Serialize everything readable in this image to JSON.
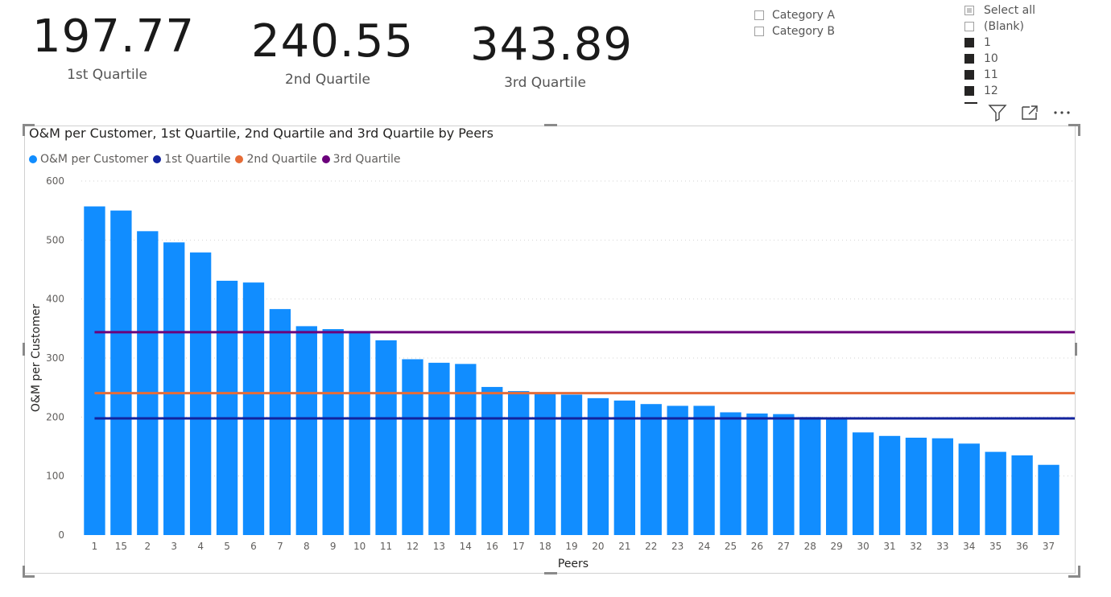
{
  "cards": [
    {
      "value": "197.77",
      "label": "1st Quartile"
    },
    {
      "value": "240.55",
      "label": "2nd Quartile"
    },
    {
      "value": "343.89",
      "label": "3rd Quartile"
    }
  ],
  "category_slicer": {
    "options": [
      {
        "label": "Category A",
        "checked": false
      },
      {
        "label": "Category B",
        "checked": false
      }
    ]
  },
  "peers_slicer": {
    "options": [
      {
        "label": "Select all",
        "state": "partial"
      },
      {
        "label": "(Blank)",
        "state": "unchecked"
      },
      {
        "label": "1",
        "state": "checked"
      },
      {
        "label": "10",
        "state": "checked"
      },
      {
        "label": "11",
        "state": "checked"
      },
      {
        "label": "12",
        "state": "checked"
      }
    ]
  },
  "visual_header": {
    "icons": [
      "filter-icon",
      "focus-mode-icon",
      "more-options-icon"
    ]
  },
  "chart_data": {
    "type": "bar",
    "title": "O&M per Customer, 1st Quartile, 2nd Quartile and 3rd Quartile by Peers",
    "xlabel": "Peers",
    "ylabel": "O&M per Customer",
    "ylim": [
      0,
      600
    ],
    "yticks": [
      0,
      100,
      200,
      300,
      400,
      500,
      600
    ],
    "grid": true,
    "legend_position": "top-left",
    "categories": [
      "1",
      "15",
      "2",
      "3",
      "4",
      "5",
      "6",
      "7",
      "8",
      "9",
      "10",
      "11",
      "12",
      "13",
      "14",
      "16",
      "17",
      "18",
      "19",
      "20",
      "21",
      "22",
      "23",
      "24",
      "25",
      "26",
      "27",
      "28",
      "29",
      "30",
      "31",
      "32",
      "33",
      "34",
      "35",
      "36",
      "37"
    ],
    "series": [
      {
        "name": "O&M per Customer",
        "type": "bar",
        "color": "#118dff",
        "values": [
          557,
          550,
          515,
          496,
          479,
          431,
          428,
          383,
          354,
          349,
          345,
          330,
          298,
          292,
          290,
          251,
          244,
          242,
          238,
          232,
          228,
          222,
          219,
          219,
          208,
          206,
          205,
          200,
          199,
          174,
          168,
          165,
          164,
          155,
          141,
          135,
          119
        ]
      },
      {
        "name": "1st Quartile",
        "type": "line",
        "color": "#12239e",
        "value": 197.77
      },
      {
        "name": "2nd Quartile",
        "type": "line",
        "color": "#e66c37",
        "value": 240.55
      },
      {
        "name": "3rd Quartile",
        "type": "line",
        "color": "#6b007b",
        "value": 343.89
      }
    ]
  }
}
